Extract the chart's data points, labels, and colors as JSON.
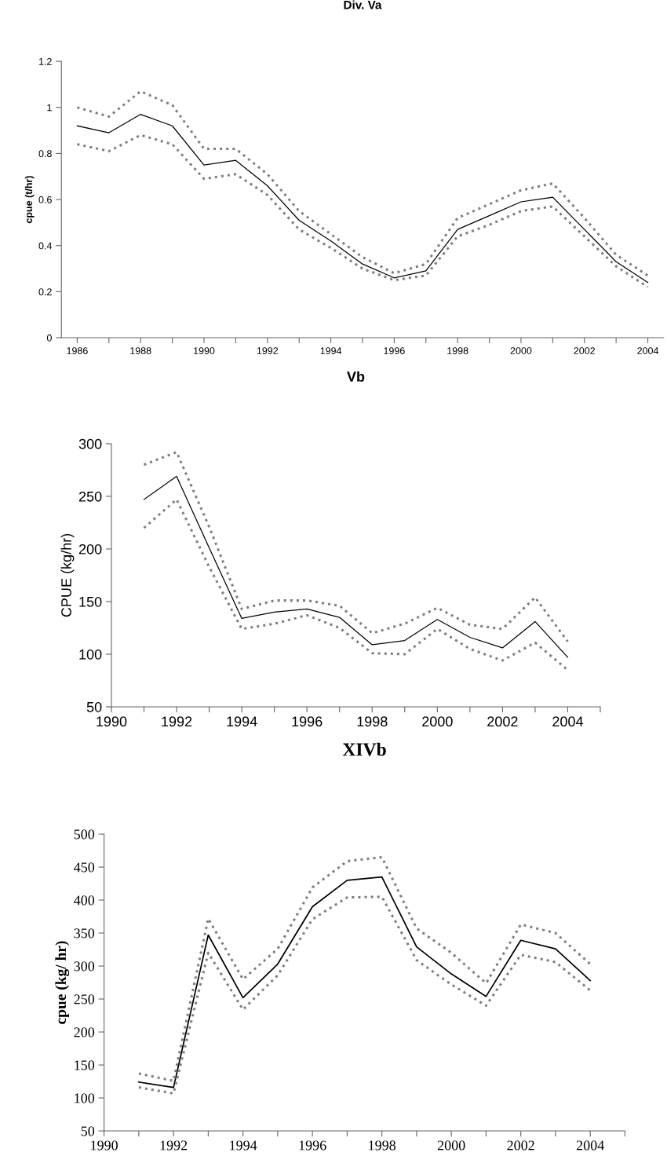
{
  "chart_data": [
    {
      "type": "line",
      "title": "Div. Va",
      "ylabel": "cpue (t/hr)",
      "x": [
        1986,
        1987,
        1988,
        1989,
        1990,
        1991,
        1992,
        1993,
        1994,
        1995,
        1996,
        1997,
        1998,
        1999,
        2000,
        2001,
        2002,
        2003,
        2004
      ],
      "series": [
        {
          "color": "#000000",
          "line_style": "solid",
          "values": [
            0.92,
            0.89,
            0.97,
            0.92,
            0.75,
            0.77,
            0.66,
            0.51,
            0.42,
            0.32,
            0.26,
            0.29,
            0.47,
            0.53,
            0.59,
            0.61,
            0.47,
            0.33,
            0.24
          ]
        },
        {
          "color": "#808080",
          "line_style": "dotted",
          "values": [
            1.0,
            0.96,
            1.07,
            1.01,
            0.82,
            0.82,
            0.71,
            0.55,
            0.45,
            0.35,
            0.28,
            0.32,
            0.52,
            0.58,
            0.64,
            0.67,
            0.52,
            0.36,
            0.27
          ]
        },
        {
          "color": "#808080",
          "line_style": "dotted",
          "values": [
            0.84,
            0.81,
            0.88,
            0.84,
            0.69,
            0.71,
            0.62,
            0.47,
            0.39,
            0.3,
            0.25,
            0.27,
            0.44,
            0.49,
            0.55,
            0.57,
            0.44,
            0.31,
            0.22
          ]
        }
      ],
      "xlim": [
        1985.5,
        2004.5
      ],
      "xticks": [
        1986,
        {
          "value": 1987,
          "label": null
        },
        1988,
        {
          "value": 1989,
          "label": null
        },
        1990,
        {
          "value": 1991,
          "label": null
        },
        1992,
        {
          "value": 1993,
          "label": null
        },
        1994,
        {
          "value": 1995,
          "label": null
        },
        1996,
        {
          "value": 1997,
          "label": null
        },
        1998,
        {
          "value": 1999,
          "label": null
        },
        2000,
        {
          "value": 2001,
          "label": null
        },
        2002,
        {
          "value": 2003,
          "label": null
        },
        2004
      ],
      "ylim": [
        0,
        1.2
      ],
      "yticks": [
        0,
        0.2,
        0.4,
        0.6,
        0.8,
        1,
        1.2
      ],
      "grid": false,
      "legend": false
    },
    {
      "type": "line",
      "title": "Vb",
      "ylabel": "CPUE (kg/hr)",
      "x": [
        1991,
        1992,
        1993,
        1994,
        1995,
        1996,
        1997,
        1998,
        1999,
        2000,
        2001,
        2002,
        2003,
        2004
      ],
      "series": [
        {
          "color": "#000000",
          "line_style": "solid",
          "values": [
            247,
            269,
            201,
            134,
            140,
            143,
            135,
            109,
            113,
            133,
            116,
            106,
            131,
            97
          ]
        },
        {
          "color": "#808080",
          "line_style": "dotted",
          "values": [
            280,
            292,
            221,
            143,
            151,
            151,
            146,
            120,
            129,
            144,
            128,
            124,
            154,
            112
          ]
        },
        {
          "color": "#808080",
          "line_style": "dotted",
          "values": [
            220,
            247,
            183,
            124,
            129,
            137,
            125,
            101,
            100,
            124,
            105,
            94,
            111,
            85
          ]
        }
      ],
      "xlim": [
        1990,
        2005
      ],
      "xticks": [
        1990,
        {
          "value": 1991,
          "label": null
        },
        1992,
        {
          "value": 1993,
          "label": null
        },
        1994,
        {
          "value": 1995,
          "label": null
        },
        1996,
        {
          "value": 1997,
          "label": null
        },
        1998,
        {
          "value": 1999,
          "label": null
        },
        2000,
        {
          "value": 2001,
          "label": null
        },
        2002,
        {
          "value": 2003,
          "label": null
        },
        2004,
        {
          "value": 2005,
          "label": null
        }
      ],
      "ylim": [
        50,
        300
      ],
      "yticks": [
        50,
        100,
        150,
        200,
        250,
        300
      ],
      "grid": false,
      "legend": false
    },
    {
      "type": "line",
      "title": "XIVb",
      "ylabel": "cpue (kg/ hr)",
      "x": [
        1991,
        1992,
        1993,
        1994,
        1995,
        1996,
        1997,
        1998,
        1999,
        2000,
        2001,
        2002,
        2003,
        2004
      ],
      "series": [
        {
          "color": "#000000",
          "line_style": "solid",
          "values": [
            124,
            116,
            347,
            252,
            303,
            390,
            430,
            435,
            329,
            288,
            254,
            339,
            326,
            278
          ]
        },
        {
          "color": "#808080",
          "line_style": "dotted",
          "values": [
            137,
            126,
            372,
            280,
            326,
            419,
            459,
            465,
            357,
            320,
            274,
            363,
            350,
            303
          ]
        },
        {
          "color": "#808080",
          "line_style": "dotted",
          "values": [
            116,
            107,
            320,
            234,
            286,
            371,
            404,
            405,
            309,
            272,
            240,
            317,
            306,
            263
          ]
        }
      ],
      "xlim": [
        1990,
        2005
      ],
      "xticks": [
        1990,
        {
          "value": 1991,
          "label": null
        },
        1992,
        {
          "value": 1993,
          "label": null
        },
        1994,
        {
          "value": 1995,
          "label": null
        },
        1996,
        {
          "value": 1997,
          "label": null
        },
        1998,
        {
          "value": 1999,
          "label": null
        },
        2000,
        {
          "value": 2001,
          "label": null
        },
        2002,
        {
          "value": 2003,
          "label": null
        },
        2004,
        {
          "value": 2005,
          "label": null
        }
      ],
      "ylim": [
        50,
        500
      ],
      "yticks": [
        50,
        100,
        150,
        200,
        250,
        300,
        350,
        400,
        450,
        500
      ],
      "grid": false,
      "legend": false
    }
  ]
}
